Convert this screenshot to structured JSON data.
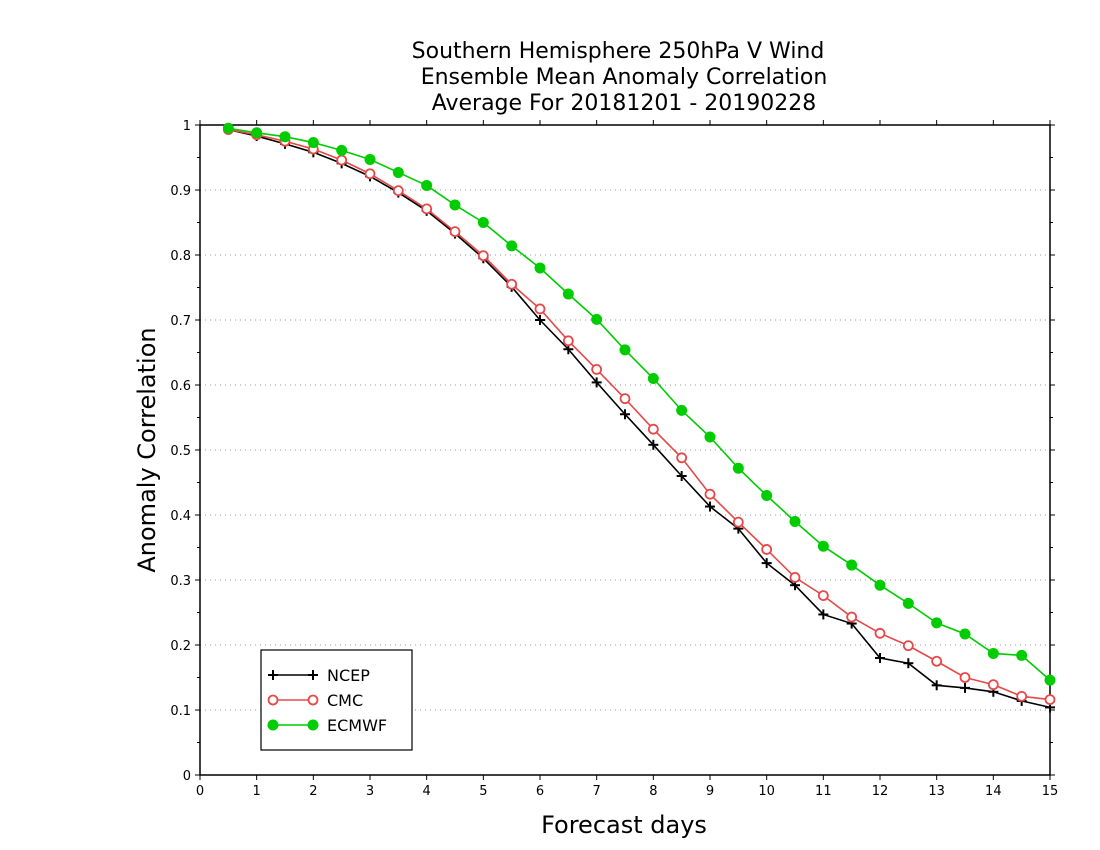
{
  "chart_data": {
    "type": "line",
    "title": [
      "Southern Hemisphere 250hPa V Wind",
      "Ensemble Mean Anomaly Correlation",
      "Average For 20181201 - 20190228"
    ],
    "xlabel": "Forecast days",
    "ylabel": "Anomaly Correlation",
    "xlim": [
      0,
      15
    ],
    "ylim": [
      0,
      1
    ],
    "xticks": [
      "0",
      "1",
      "2",
      "3",
      "4",
      "5",
      "6",
      "7",
      "8",
      "9",
      "10",
      "11",
      "12",
      "13",
      "14",
      "15"
    ],
    "yticks": [
      "0",
      "0.1",
      "0.2",
      "0.3",
      "0.4",
      "0.5",
      "0.6",
      "0.7",
      "0.8",
      "0.9",
      "1"
    ],
    "grid": "horizontal-dotted",
    "legend_position": "bottom-left",
    "x": [
      0.5,
      1,
      1.5,
      2,
      2.5,
      3,
      3.5,
      4,
      4.5,
      5,
      5.5,
      6,
      6.5,
      7,
      7.5,
      8,
      8.5,
      9,
      9.5,
      10,
      10.5,
      11,
      11.5,
      12,
      12.5,
      13,
      13.5,
      14,
      14.5,
      15
    ],
    "series": [
      {
        "name": "NCEP",
        "color": "#000000",
        "marker": "plus",
        "values": [
          0.993,
          0.983,
          0.971,
          0.958,
          0.941,
          0.921,
          0.896,
          0.868,
          0.833,
          0.795,
          0.751,
          0.7,
          0.655,
          0.604,
          0.555,
          0.508,
          0.46,
          0.413,
          0.379,
          0.326,
          0.292,
          0.247,
          0.233,
          0.18,
          0.172,
          0.138,
          0.134,
          0.128,
          0.114,
          0.104
        ]
      },
      {
        "name": "CMC",
        "color": "#e84848",
        "marker": "open-circle",
        "values": [
          0.993,
          0.985,
          0.975,
          0.963,
          0.946,
          0.925,
          0.899,
          0.871,
          0.836,
          0.799,
          0.755,
          0.717,
          0.668,
          0.624,
          0.579,
          0.532,
          0.488,
          0.432,
          0.389,
          0.347,
          0.304,
          0.276,
          0.243,
          0.218,
          0.199,
          0.175,
          0.15,
          0.139,
          0.121,
          0.116
        ]
      },
      {
        "name": "ECMWF",
        "color": "#00cc00",
        "marker": "filled-circle",
        "values": [
          0.995,
          0.988,
          0.982,
          0.973,
          0.961,
          0.947,
          0.927,
          0.907,
          0.877,
          0.85,
          0.814,
          0.78,
          0.74,
          0.701,
          0.654,
          0.61,
          0.561,
          0.52,
          0.472,
          0.43,
          0.39,
          0.352,
          0.323,
          0.292,
          0.264,
          0.234,
          0.217,
          0.187,
          0.184,
          0.146
        ]
      }
    ]
  }
}
